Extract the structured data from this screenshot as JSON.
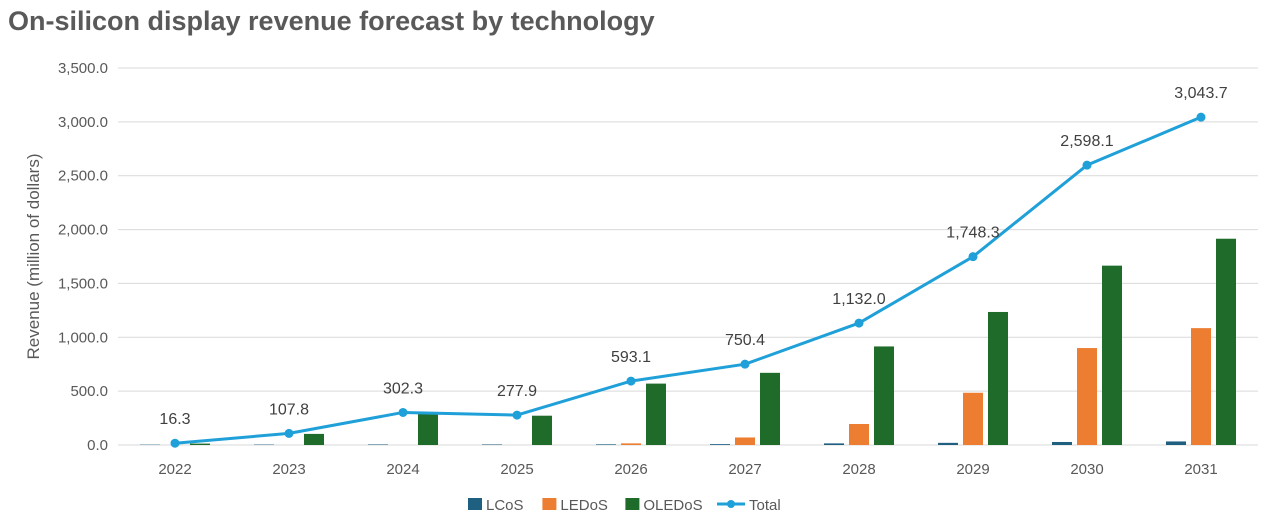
{
  "chart_data": {
    "type": "bar",
    "title": "On-silicon display revenue forecast by technology",
    "xlabel": "",
    "ylabel": "Revenue (million of dollars)",
    "ylim": [
      0,
      3500
    ],
    "yticks": [
      0,
      500,
      1000,
      1500,
      2000,
      2500,
      3000,
      3500
    ],
    "ytick_labels": [
      "0.0",
      "500.0",
      "1,000.0",
      "1,500.0",
      "2,000.0",
      "2,500.0",
      "3,000.0",
      "3,500.0"
    ],
    "categories": [
      "2022",
      "2023",
      "2024",
      "2025",
      "2026",
      "2027",
      "2028",
      "2029",
      "2030",
      "2031"
    ],
    "series": [
      {
        "name": "LCoS",
        "type": "bar",
        "color": "#1F5F80",
        "values": [
          3,
          4,
          5,
          5,
          6,
          8,
          15,
          20,
          28,
          33
        ]
      },
      {
        "name": "LEDoS",
        "type": "bar",
        "color": "#ED7D31",
        "values": [
          0,
          0,
          0,
          0,
          15,
          70,
          195,
          485,
          900,
          1085
        ]
      },
      {
        "name": "OLEDoS",
        "type": "bar",
        "color": "#1E6B2A",
        "values": [
          13,
          103,
          297,
          272,
          570,
          670,
          915,
          1235,
          1665,
          1915
        ]
      },
      {
        "name": "Total",
        "type": "line",
        "color": "#1FA0D8",
        "values": [
          16.3,
          107.8,
          302.3,
          277.9,
          593.1,
          750.4,
          1132.0,
          1748.3,
          2598.1,
          3043.7
        ],
        "labels": [
          "16.3",
          "107.8",
          "302.3",
          "277.9",
          "593.1",
          "750.4",
          "1,132.0",
          "1,748.3",
          "2,598.1",
          "3,043.7"
        ]
      }
    ],
    "grid": true,
    "legend": "bottom"
  }
}
